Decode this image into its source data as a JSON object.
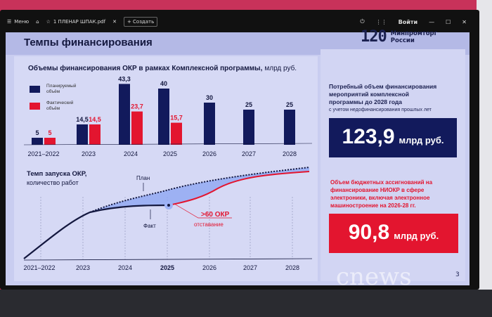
{
  "browser": {
    "menu_label": "Меню",
    "tab_label": "1 ПЛЕНАР ШПАК.pdf",
    "new_label": "Создать",
    "login_label": "Войти"
  },
  "slide": {
    "title": "Темпы финансирования",
    "logo_number": "120",
    "logo_text_1": "Минпромторг",
    "logo_text_2": "России",
    "page_number": "3",
    "watermark": "cnews"
  },
  "right_panel": {
    "need_text_1": "Потребный объем финансирования",
    "need_text_2": "мероприятий комплексной",
    "need_text_3": "программы  до 2028 года",
    "need_note": "с учетом недофинансирования прошлых лет",
    "need_value": "123,9",
    "need_unit": "млрд руб.",
    "budget_text_1": "Объем бюджетных ассигнований на",
    "budget_text_2": "финансирование НИОКР в сфере",
    "budget_text_3": "электроники, включая электронное",
    "budget_text_4": "машиностроение на 2026-28 гг.",
    "budget_value": "90,8",
    "budget_unit": "млрд руб.",
    "colors": {
      "navy": "#121a5c",
      "red": "#e3152f"
    }
  },
  "chart_data": [
    {
      "type": "bar",
      "title": "Объемы финансирования ОКР в рамках Комплексной программы,",
      "title_unit": "млрд руб.",
      "categories": [
        "2021–2022",
        "2023",
        "2024",
        "2025",
        "2026",
        "2027",
        "2028"
      ],
      "series": [
        {
          "name": "Планируемый объём",
          "color": "#121a5c",
          "values": [
            5,
            14.5,
            43.3,
            40,
            30,
            25,
            25
          ],
          "labels": [
            "5",
            "14,5",
            "43,3",
            "40",
            "30",
            "25",
            "25"
          ]
        },
        {
          "name": "Фактический объём",
          "color": "#e3152f",
          "values": [
            5,
            14.5,
            23.7,
            15.7,
            null,
            null,
            null
          ],
          "labels": [
            "5",
            "14,5",
            "23,7",
            "15,7",
            "",
            "",
            ""
          ]
        }
      ],
      "legend": [
        "Планируемый",
        "объём",
        "Фактический",
        "объём"
      ],
      "ylim": [
        0,
        50
      ]
    },
    {
      "type": "line",
      "title": "Темп запуска ОКР,",
      "subtitle": "количество работ",
      "categories": [
        "2021–2022",
        "2023",
        "2024",
        "2025",
        "2026",
        "2027",
        "2028"
      ],
      "labels": {
        "plan": "План",
        "fact": "Факт",
        "gap_value": ">60 ОКР",
        "gap_label": "отставание"
      }
    }
  ]
}
